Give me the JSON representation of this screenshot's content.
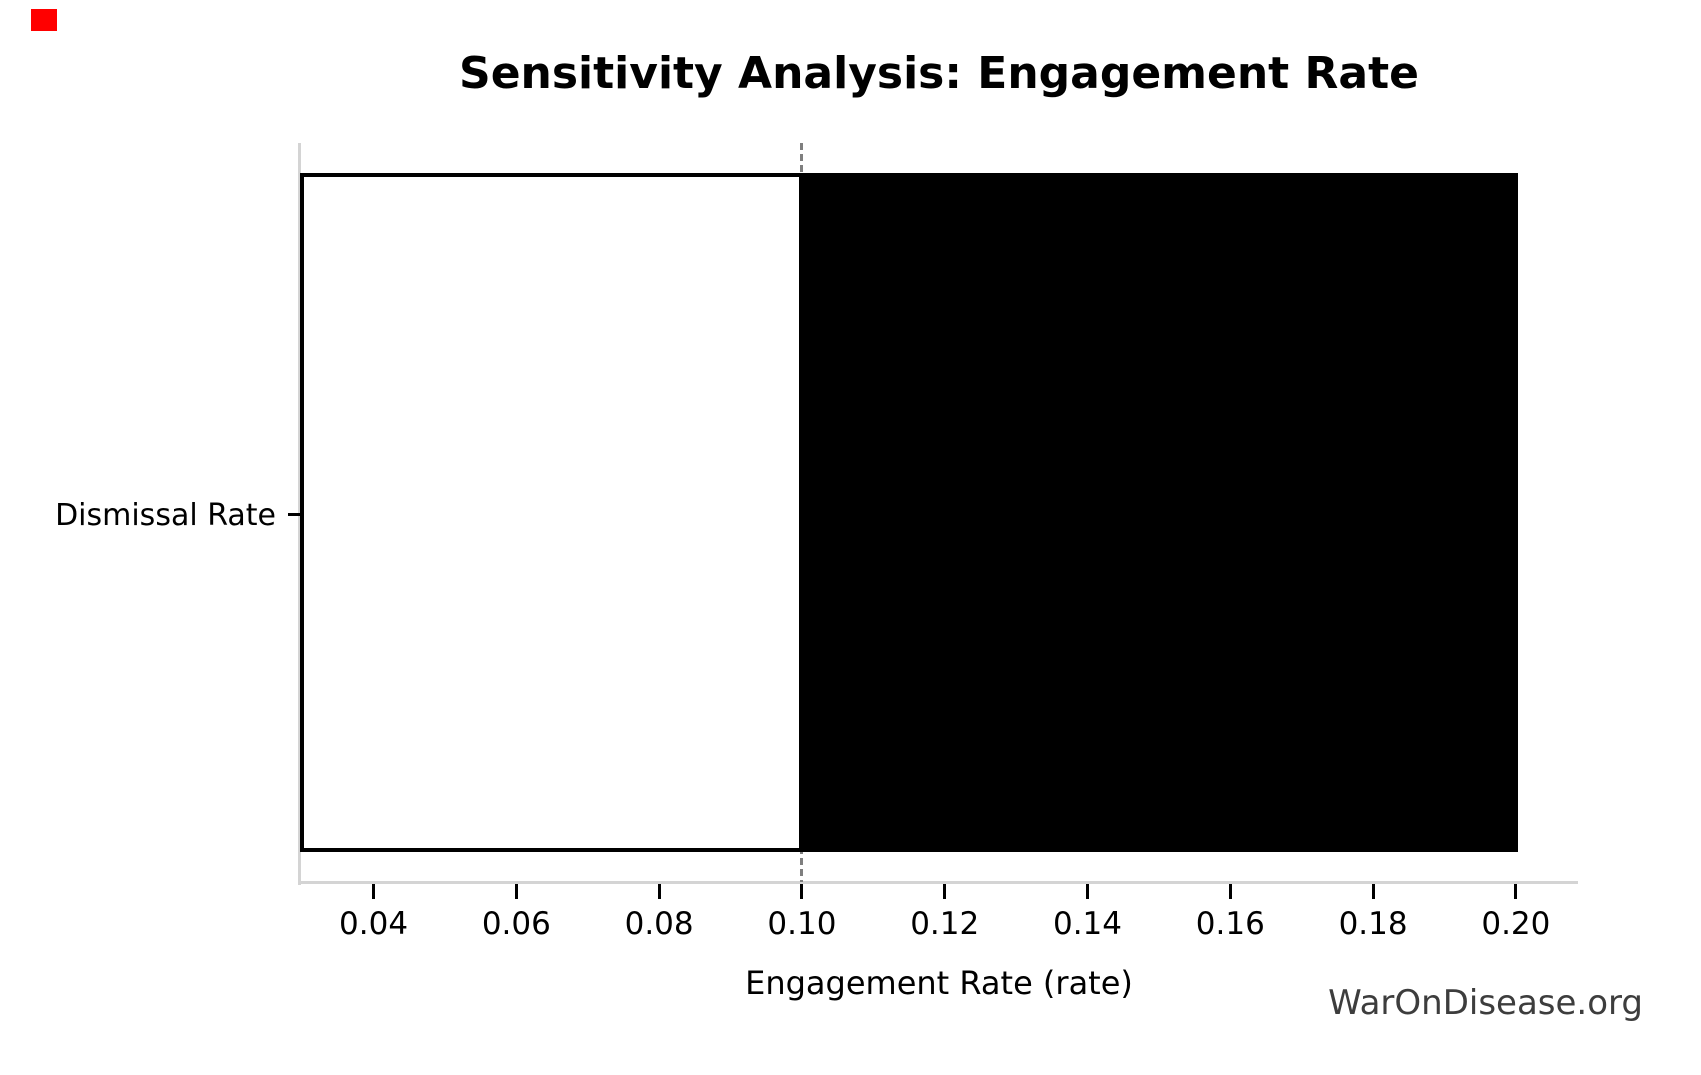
{
  "marker": {
    "color": "#ff0000"
  },
  "watermark": {
    "text": "WarOnDisease.org",
    "color": "#3d3d3d"
  },
  "chart_data": {
    "type": "bar",
    "orientation": "horizontal",
    "title": "Sensitivity Analysis: Engagement Rate",
    "xlabel": "Engagement Rate (rate)",
    "ylabel": "",
    "categories": [
      "Dismissal Rate"
    ],
    "series": [
      {
        "name": "Dismissal Rate",
        "low": 0.03,
        "high": 0.2,
        "baseline": 0.1
      }
    ],
    "x_ticks": [
      0.04,
      0.06,
      0.08,
      0.1,
      0.12,
      0.14,
      0.16,
      0.18,
      0.2
    ],
    "xlim": [
      0.0297,
      0.2087
    ],
    "baseline_value": 0.1,
    "grid": false,
    "legend": false,
    "colors": {
      "bar_low_fill": "#ffffff",
      "bar_high_fill": "#000000",
      "bar_edge": "#000000",
      "baseline_line": "#7f7f7f",
      "spine": "#d4d4d4",
      "tick": "#000000",
      "text": "#000000"
    }
  }
}
